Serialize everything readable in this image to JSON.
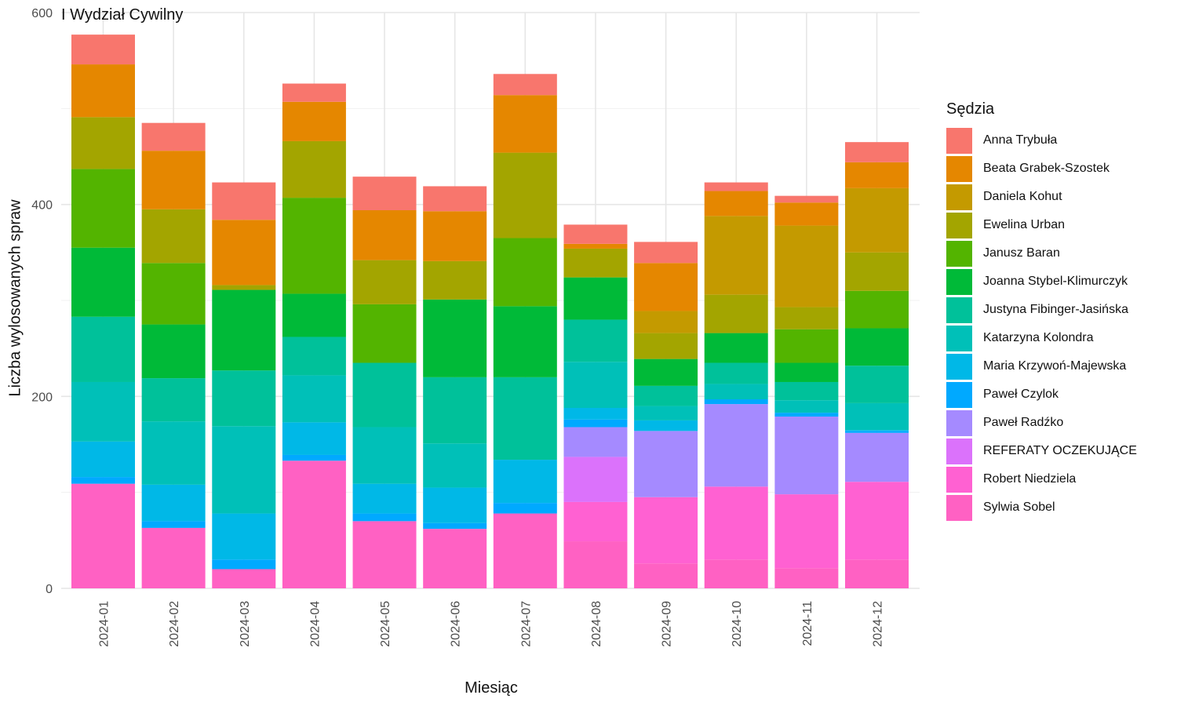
{
  "title": "I Wydział Cywilny",
  "chart_data": {
    "type": "bar",
    "stacked": true,
    "title": "I Wydział Cywilny",
    "xlabel": "Miesiąc",
    "ylabel": "Liczba wylosowanych spraw",
    "ylim": [
      0,
      600
    ],
    "yticks": [
      0,
      200,
      400,
      600
    ],
    "grid": true,
    "legend_title": "Sędzia",
    "legend_position": "right",
    "categories": [
      "2024-01",
      "2024-02",
      "2024-03",
      "2024-04",
      "2024-05",
      "2024-06",
      "2024-07",
      "2024-08",
      "2024-09",
      "2024-10",
      "2024-11",
      "2024-12"
    ],
    "series": [
      {
        "name": "Sylwia Sobel",
        "color": "#FF61C3",
        "values": [
          109,
          63,
          20,
          133,
          70,
          62,
          78,
          49,
          26,
          30,
          21,
          30
        ]
      },
      {
        "name": "Robert Niedziela",
        "color": "#FF61D2",
        "values": [
          0,
          0,
          0,
          0,
          0,
          0,
          0,
          41,
          69,
          76,
          77,
          81
        ]
      },
      {
        "name": "REFERATY OCZEKUJĄCE",
        "color": "#DB72FB",
        "values": [
          0,
          0,
          0,
          0,
          0,
          0,
          0,
          47,
          0,
          0,
          0,
          0
        ]
      },
      {
        "name": "Paweł Radźko",
        "color": "#A58AFF",
        "values": [
          0,
          0,
          0,
          0,
          0,
          0,
          0,
          31,
          69,
          86,
          81,
          51
        ]
      },
      {
        "name": "Paweł Czylok",
        "color": "#00A9FF",
        "values": [
          7,
          7,
          10,
          6,
          8,
          6,
          11,
          8,
          0,
          5,
          4,
          2
        ]
      },
      {
        "name": "Maria Krzywoń-Majewska",
        "color": "#00B8E7",
        "values": [
          37,
          38,
          48,
          34,
          31,
          37,
          45,
          12,
          11,
          0,
          0,
          1
        ]
      },
      {
        "name": "Katarzyna Kolondra",
        "color": "#00C0B8",
        "values": [
          62,
          66,
          91,
          49,
          59,
          46,
          0,
          48,
          15,
          16,
          13,
          28
        ]
      },
      {
        "name": "Justyna Fibinger-Jasińska",
        "color": "#00C19A",
        "values": [
          68,
          45,
          58,
          40,
          67,
          69,
          86,
          44,
          21,
          22,
          19,
          39
        ]
      },
      {
        "name": "Joanna Stybel-Klimurczyk",
        "color": "#00BA38",
        "values": [
          72,
          56,
          84,
          45,
          0,
          81,
          74,
          44,
          28,
          31,
          20,
          39
        ]
      },
      {
        "name": "Janusz Baran",
        "color": "#53B400",
        "values": [
          82,
          64,
          0,
          100,
          61,
          0,
          71,
          0,
          0,
          0,
          35,
          39
        ]
      },
      {
        "name": "Ewelina Urban",
        "color": "#A3A500",
        "values": [
          54,
          56,
          5,
          59,
          46,
          40,
          89,
          30,
          27,
          40,
          23,
          40
        ]
      },
      {
        "name": "Daniela Kohut",
        "color": "#C49A00",
        "values": [
          0,
          0,
          0,
          0,
          0,
          0,
          0,
          0,
          23,
          82,
          85,
          67
        ]
      },
      {
        "name": "Beata Grabek-Szostek",
        "color": "#E58700",
        "values": [
          55,
          61,
          68,
          41,
          52,
          52,
          60,
          5,
          50,
          26,
          24,
          27
        ]
      },
      {
        "name": "Anna Trybuła",
        "color": "#F8766D",
        "values": [
          31,
          29,
          39,
          19,
          35,
          26,
          22,
          20,
          22,
          9,
          7,
          21
        ]
      }
    ]
  }
}
